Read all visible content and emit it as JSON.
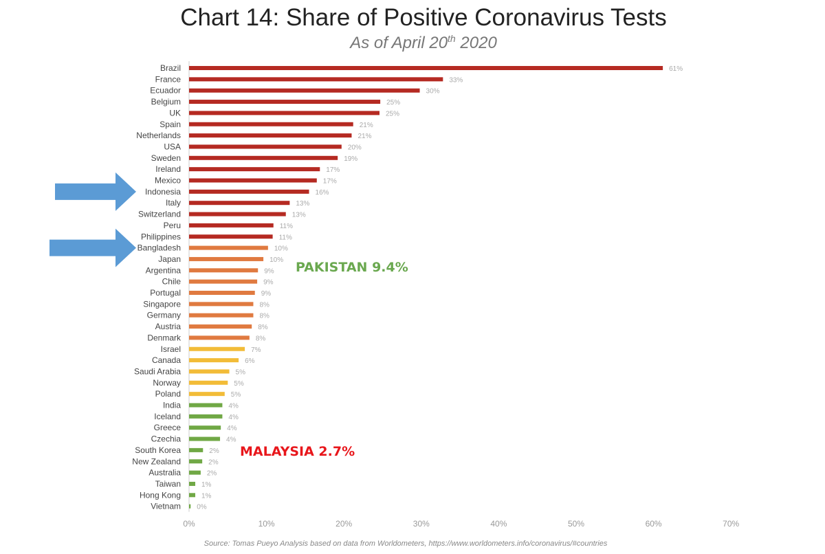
{
  "title": "Chart 14: Share of Positive Coronavirus Tests",
  "subtitle": {
    "prefix": "As of April 20",
    "sup": "th",
    "suffix": " 2020"
  },
  "source": "Source: Tomas Pueyo Analysis based on data from Worldometers, https://www.worldometers.info/coronavirus/#countries",
  "annotations": [
    {
      "text": "PAKISTAN 9.4%",
      "color": "#6aa84f"
    },
    {
      "text": "MALAYSIA 2.7%",
      "color": "#e8161b"
    }
  ],
  "arrows": {
    "color": "#5b9bd5",
    "points_to": [
      "Indonesia",
      "Bangladesh"
    ]
  },
  "colors": {
    "red": "#b52a22",
    "orange": "#e07a40",
    "yellow": "#f2bc38",
    "green": "#70a845",
    "axis": "#cccccc"
  },
  "chart_data": {
    "type": "bar",
    "orientation": "horizontal",
    "title": "Chart 14: Share of Positive Coronavirus Tests",
    "subtitle": "As of April 20th 2020",
    "categories": [
      "Brazil",
      "France",
      "Ecuador",
      "Belgium",
      "UK",
      "Spain",
      "Netherlands",
      "USA",
      "Sweden",
      "Ireland",
      "Mexico",
      "Indonesia",
      "Italy",
      "Switzerland",
      "Peru",
      "Philippines",
      "Bangladesh",
      "Japan",
      "Argentina",
      "Chile",
      "Portugal",
      "Singapore",
      "Germany",
      "Austria",
      "Denmark",
      "Israel",
      "Canada",
      "Saudi Arabia",
      "Norway",
      "Poland",
      "India",
      "Iceland",
      "Greece",
      "Czechia",
      "South Korea",
      "New Zealand",
      "Australia",
      "Taiwan",
      "Hong Kong",
      "Vietnam"
    ],
    "values": [
      61.2,
      32.8,
      29.8,
      24.7,
      24.6,
      21.2,
      21.0,
      19.7,
      19.2,
      16.9,
      16.5,
      15.5,
      13.0,
      12.5,
      10.9,
      10.8,
      10.2,
      9.6,
      8.9,
      8.8,
      8.5,
      8.3,
      8.3,
      8.1,
      7.8,
      7.2,
      6.4,
      5.2,
      5.0,
      4.6,
      4.3,
      4.3,
      4.1,
      4.0,
      1.8,
      1.7,
      1.5,
      0.8,
      0.8,
      0.2
    ],
    "data_labels": [
      "61%",
      "33%",
      "30%",
      "25%",
      "25%",
      "21%",
      "21%",
      "20%",
      "19%",
      "17%",
      "17%",
      "16%",
      "13%",
      "13%",
      "11%",
      "11%",
      "10%",
      "10%",
      "9%",
      "9%",
      "9%",
      "8%",
      "8%",
      "8%",
      "8%",
      "7%",
      "6%",
      "5%",
      "5%",
      "5%",
      "4%",
      "4%",
      "4%",
      "4%",
      "2%",
      "2%",
      "2%",
      "1%",
      "1%",
      "0%"
    ],
    "color_groups": [
      "red",
      "red",
      "red",
      "red",
      "red",
      "red",
      "red",
      "red",
      "red",
      "red",
      "red",
      "red",
      "red",
      "red",
      "red",
      "red",
      "orange",
      "orange",
      "orange",
      "orange",
      "orange",
      "orange",
      "orange",
      "orange",
      "orange",
      "yellow",
      "yellow",
      "yellow",
      "yellow",
      "yellow",
      "green",
      "green",
      "green",
      "green",
      "green",
      "green",
      "green",
      "green",
      "green",
      "green"
    ],
    "xticks": [
      "0%",
      "10%",
      "20%",
      "30%",
      "40%",
      "50%",
      "60%",
      "70%"
    ],
    "xlim": [
      0,
      70
    ],
    "grid": false,
    "legend": "none"
  }
}
